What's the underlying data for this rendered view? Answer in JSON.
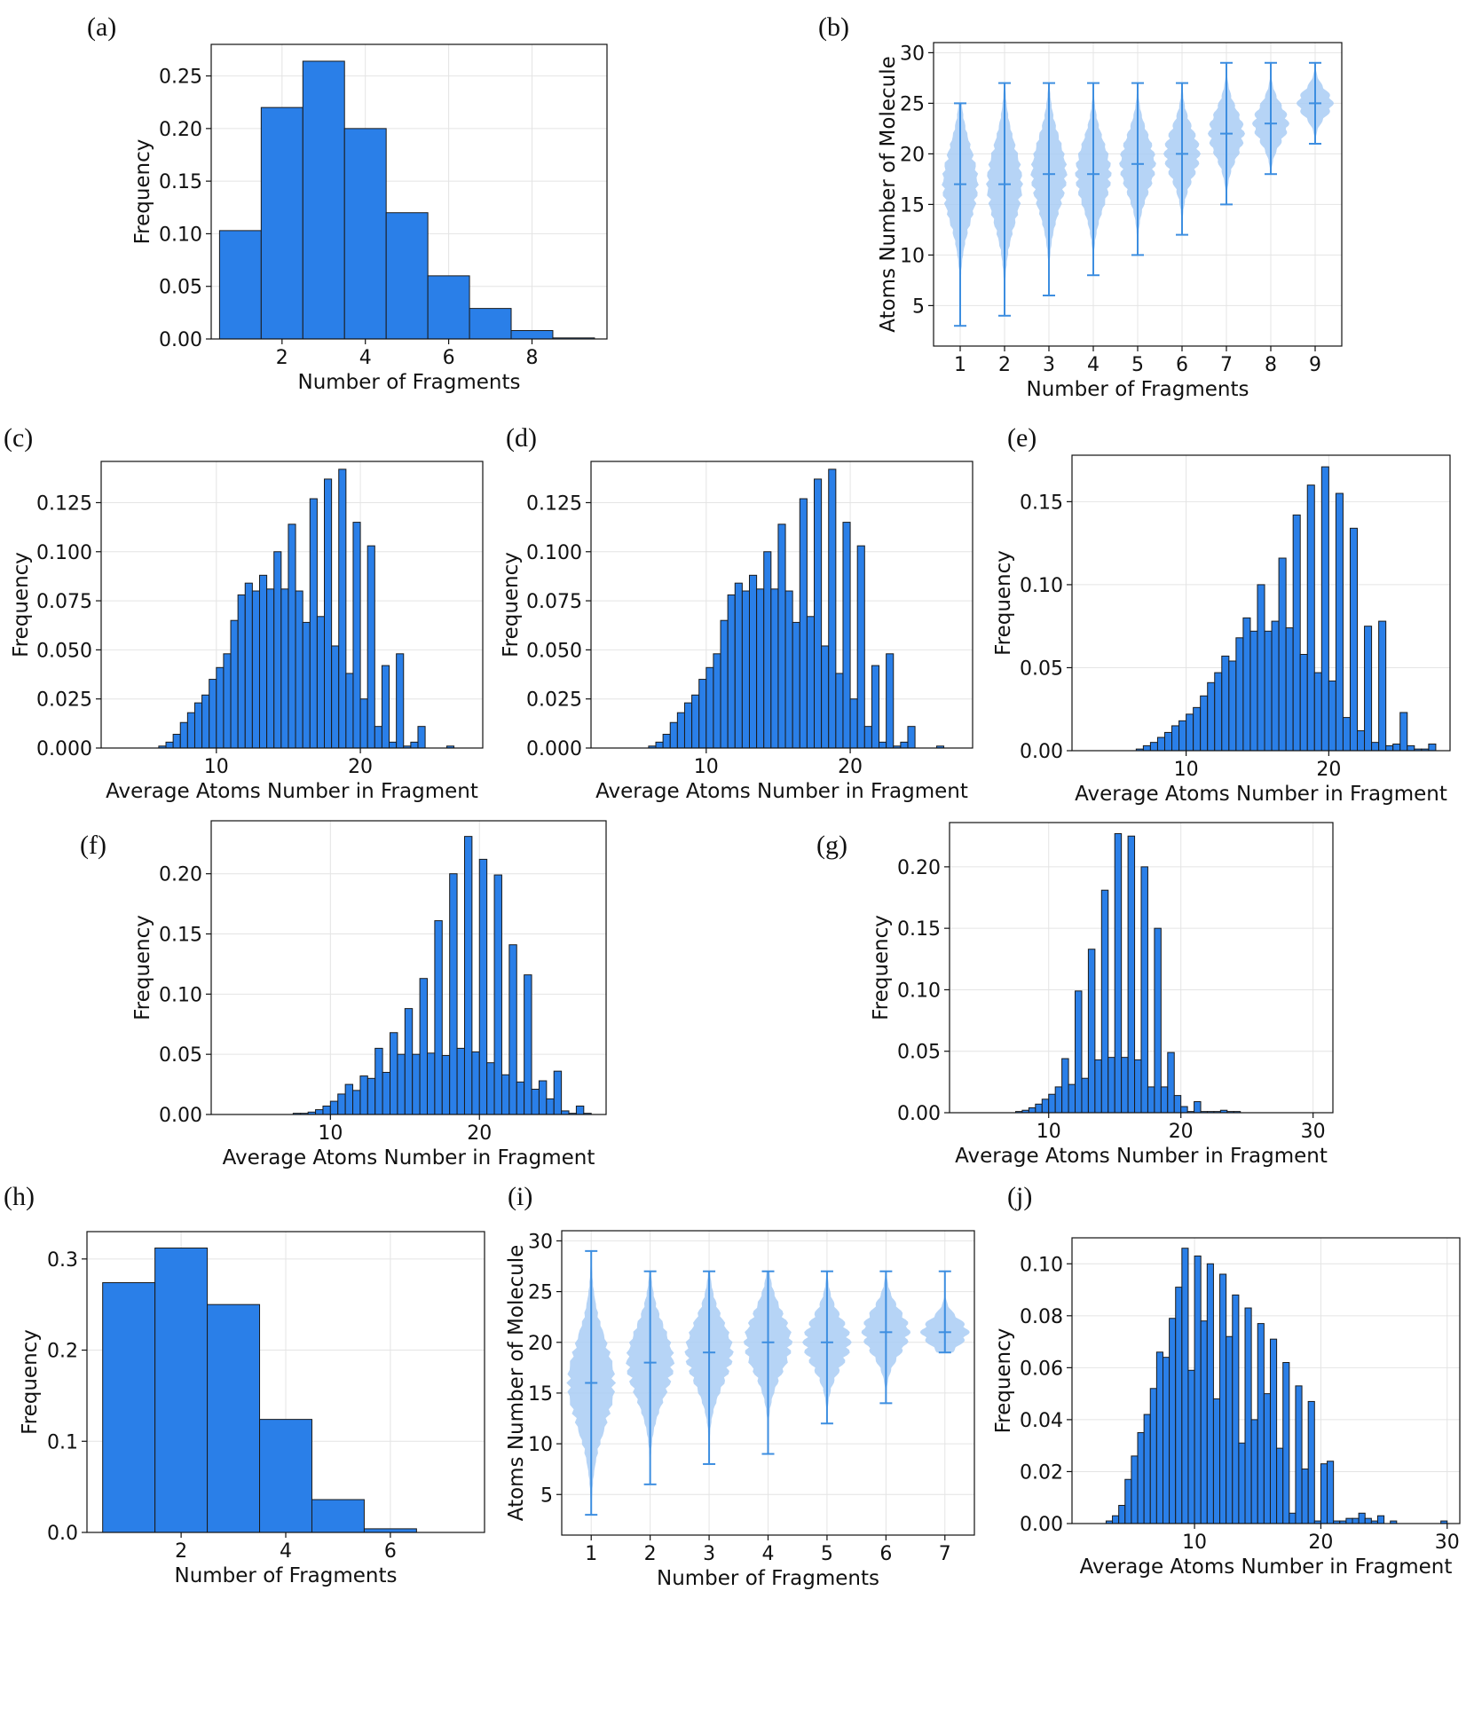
{
  "colors": {
    "bar": "#2a7fe8",
    "edge": "#1b1b1b",
    "violin": "#a9cdf5",
    "line": "#3d8ee0",
    "grid": "#e4e4e4"
  },
  "chart_data": [
    {
      "id": "a",
      "label": "(a)",
      "type": "bar",
      "xlabel": "Number of Fragments",
      "ylabel": "Frequency",
      "xlim": [
        0.3,
        9.8
      ],
      "ylim": [
        0,
        0.28
      ],
      "xticks": [
        2,
        4,
        6,
        8
      ],
      "yticks": [
        0.0,
        0.05,
        0.1,
        0.15,
        0.2,
        0.25
      ],
      "xtick_labels": [
        "2",
        "4",
        "6",
        "8"
      ],
      "ytick_labels": [
        "0.00",
        "0.05",
        "0.10",
        "0.15",
        "0.20",
        "0.25"
      ],
      "bin_start": 0.5,
      "bin_width": 1,
      "values": [
        0.103,
        0.22,
        0.264,
        0.2,
        0.12,
        0.06,
        0.029,
        0.008,
        0.001
      ]
    },
    {
      "id": "b",
      "label": "(b)",
      "type": "violin",
      "xlabel": "Number of Fragments",
      "ylabel": "Atoms Number of Molecule",
      "xlim": [
        0.4,
        9.6
      ],
      "ylim": [
        1,
        31
      ],
      "xticks": [
        1,
        2,
        3,
        4,
        5,
        6,
        7,
        8,
        9
      ],
      "yticks": [
        5,
        10,
        15,
        20,
        25,
        30
      ],
      "xtick_labels": [
        "1",
        "2",
        "3",
        "4",
        "5",
        "6",
        "7",
        "8",
        "9"
      ],
      "ytick_labels": [
        "5",
        "10",
        "15",
        "20",
        "25",
        "30"
      ],
      "violins": [
        {
          "x": 1,
          "min": 3,
          "max": 25,
          "median": 17
        },
        {
          "x": 2,
          "min": 4,
          "max": 27,
          "median": 17
        },
        {
          "x": 3,
          "min": 6,
          "max": 27,
          "median": 18
        },
        {
          "x": 4,
          "min": 8,
          "max": 27,
          "median": 18
        },
        {
          "x": 5,
          "min": 10,
          "max": 27,
          "median": 19
        },
        {
          "x": 6,
          "min": 12,
          "max": 27,
          "median": 20
        },
        {
          "x": 7,
          "min": 15,
          "max": 29,
          "median": 22
        },
        {
          "x": 8,
          "min": 18,
          "max": 29,
          "median": 23
        },
        {
          "x": 9,
          "min": 21,
          "max": 29,
          "median": 25
        }
      ]
    },
    {
      "id": "c",
      "label": "(c)",
      "type": "bar",
      "xlabel": "Average Atoms Number in Fragment",
      "ylabel": "Frequency",
      "xlim": [
        2,
        28.5
      ],
      "ylim": [
        0,
        0.146
      ],
      "xticks": [
        10,
        20
      ],
      "yticks": [
        0.0,
        0.025,
        0.05,
        0.075,
        0.1,
        0.125
      ],
      "xtick_labels": [
        "10",
        "20"
      ],
      "ytick_labels": [
        "0.000",
        "0.025",
        "0.050",
        "0.075",
        "0.100",
        "0.125"
      ],
      "bin_start": 4,
      "bin_width": 0.5,
      "values": [
        0,
        0,
        0,
        0,
        0.001,
        0.003,
        0.007,
        0.013,
        0.018,
        0.023,
        0.027,
        0.035,
        0.041,
        0.048,
        0.065,
        0.078,
        0.084,
        0.08,
        0.088,
        0.081,
        0.1,
        0.081,
        0.114,
        0.08,
        0.064,
        0.127,
        0.067,
        0.137,
        0.052,
        0.142,
        0.038,
        0.115,
        0.025,
        0.103,
        0.011,
        0.042,
        0.003,
        0.048,
        0.001,
        0.003,
        0.011,
        0,
        0,
        0,
        0.001,
        0,
        0,
        0,
        0,
        0
      ]
    },
    {
      "id": "d",
      "label": "(d)",
      "type": "bar",
      "xlabel": "Average Atoms Number in Fragment",
      "ylabel": "Frequency",
      "xlim": [
        2,
        28.5
      ],
      "ylim": [
        0,
        0.146
      ],
      "xticks": [
        10,
        20
      ],
      "yticks": [
        0.0,
        0.025,
        0.05,
        0.075,
        0.1,
        0.125
      ],
      "xtick_labels": [
        "10",
        "20"
      ],
      "ytick_labels": [
        "0.000",
        "0.025",
        "0.050",
        "0.075",
        "0.100",
        "0.125"
      ],
      "bin_start": 4,
      "bin_width": 0.5,
      "values": [
        0,
        0,
        0,
        0,
        0.001,
        0.003,
        0.007,
        0.013,
        0.018,
        0.023,
        0.027,
        0.035,
        0.041,
        0.048,
        0.065,
        0.078,
        0.084,
        0.08,
        0.088,
        0.081,
        0.1,
        0.081,
        0.114,
        0.08,
        0.064,
        0.127,
        0.067,
        0.137,
        0.052,
        0.142,
        0.038,
        0.115,
        0.025,
        0.103,
        0.011,
        0.042,
        0.003,
        0.048,
        0.001,
        0.003,
        0.011,
        0,
        0,
        0,
        0.001,
        0,
        0,
        0,
        0,
        0
      ]
    },
    {
      "id": "e",
      "label": "(e)",
      "type": "bar",
      "xlabel": "Average Atoms Number in Fragment",
      "ylabel": "Frequency",
      "xlim": [
        2,
        28.5
      ],
      "ylim": [
        0,
        0.178
      ],
      "xticks": [
        10,
        20
      ],
      "yticks": [
        0.0,
        0.05,
        0.1,
        0.15
      ],
      "xtick_labels": [
        "10",
        "20"
      ],
      "ytick_labels": [
        "0.00",
        "0.05",
        "0.10",
        "0.15"
      ],
      "bin_start": 4,
      "bin_width": 0.5,
      "values": [
        0,
        0,
        0,
        0,
        0,
        0.001,
        0.003,
        0.005,
        0.008,
        0.011,
        0.015,
        0.018,
        0.022,
        0.026,
        0.033,
        0.041,
        0.047,
        0.057,
        0.054,
        0.068,
        0.08,
        0.072,
        0.1,
        0.072,
        0.078,
        0.116,
        0.074,
        0.142,
        0.058,
        0.16,
        0.047,
        0.171,
        0.042,
        0.155,
        0.02,
        0.134,
        0.012,
        0.075,
        0.005,
        0.078,
        0.003,
        0.004,
        0.023,
        0.003,
        0.001,
        0.001,
        0.004,
        0,
        0,
        0
      ]
    },
    {
      "id": "f",
      "label": "(f)",
      "type": "bar",
      "xlabel": "Average Atoms Number in Fragment",
      "ylabel": "Frequency",
      "xlim": [
        2,
        28.5
      ],
      "ylim": [
        0,
        0.244
      ],
      "xticks": [
        10,
        20
      ],
      "yticks": [
        0.0,
        0.05,
        0.1,
        0.15,
        0.2
      ],
      "xtick_labels": [
        "10",
        "20"
      ],
      "ytick_labels": [
        "0.00",
        "0.05",
        "0.10",
        "0.15",
        "0.20"
      ],
      "bin_start": 4,
      "bin_width": 0.5,
      "values": [
        0,
        0,
        0,
        0,
        0,
        0,
        0,
        0.001,
        0.001,
        0.002,
        0.004,
        0.007,
        0.011,
        0.017,
        0.025,
        0.02,
        0.032,
        0.03,
        0.055,
        0.035,
        0.068,
        0.05,
        0.088,
        0.05,
        0.113,
        0.051,
        0.161,
        0.049,
        0.2,
        0.055,
        0.231,
        0.052,
        0.212,
        0.043,
        0.199,
        0.033,
        0.141,
        0.027,
        0.116,
        0.021,
        0.028,
        0.013,
        0.036,
        0.003,
        0.001,
        0.007,
        0.001,
        0,
        0,
        0
      ]
    },
    {
      "id": "g",
      "label": "(g)",
      "type": "bar",
      "xlabel": "Average Atoms Number in Fragment",
      "ylabel": "Frequency",
      "xlim": [
        2.5,
        31.5
      ],
      "ylim": [
        0,
        0.236
      ],
      "xticks": [
        10,
        20,
        30
      ],
      "yticks": [
        0.0,
        0.05,
        0.1,
        0.15,
        0.2
      ],
      "xtick_labels": [
        "10",
        "20",
        "30"
      ],
      "ytick_labels": [
        "0.00",
        "0.05",
        "0.10",
        "0.15",
        "0.20"
      ],
      "bin_start": 7,
      "bin_width": 0.5,
      "values": [
        0,
        0.001,
        0.002,
        0.004,
        0.007,
        0.011,
        0.015,
        0.021,
        0.044,
        0.023,
        0.099,
        0.028,
        0.133,
        0.043,
        0.181,
        0.045,
        0.227,
        0.045,
        0.225,
        0.043,
        0.2,
        0.021,
        0.15,
        0.021,
        0.049,
        0.014,
        0.005,
        0.001,
        0.009,
        0.001,
        0.001,
        0.001,
        0.002,
        0.001,
        0.001,
        0,
        0,
        0,
        0,
        0,
        0,
        0,
        0,
        0,
        0,
        0
      ]
    },
    {
      "id": "h",
      "label": "(h)",
      "type": "bar",
      "xlabel": "Number of Fragments",
      "ylabel": "Frequency",
      "xlim": [
        0.2,
        7.8
      ],
      "ylim": [
        0,
        0.33
      ],
      "xticks": [
        2,
        4,
        6
      ],
      "yticks": [
        0.0,
        0.1,
        0.2,
        0.3
      ],
      "xtick_labels": [
        "2",
        "4",
        "6"
      ],
      "ytick_labels": [
        "0.0",
        "0.1",
        "0.2",
        "0.3"
      ],
      "bin_start": 0.5,
      "bin_width": 1,
      "values": [
        0.274,
        0.312,
        0.25,
        0.124,
        0.036,
        0.004,
        0
      ]
    },
    {
      "id": "i",
      "label": "(i)",
      "type": "violin",
      "xlabel": "Number of Fragments",
      "ylabel": "Atoms Number of Molecule",
      "xlim": [
        0.5,
        7.5
      ],
      "ylim": [
        1,
        31
      ],
      "xticks": [
        1,
        2,
        3,
        4,
        5,
        6,
        7
      ],
      "yticks": [
        5,
        10,
        15,
        20,
        25,
        30
      ],
      "xtick_labels": [
        "1",
        "2",
        "3",
        "4",
        "5",
        "6",
        "7"
      ],
      "ytick_labels": [
        "5",
        "10",
        "15",
        "20",
        "25",
        "30"
      ],
      "violins": [
        {
          "x": 1,
          "min": 3,
          "max": 29,
          "median": 16
        },
        {
          "x": 2,
          "min": 6,
          "max": 27,
          "median": 18
        },
        {
          "x": 3,
          "min": 8,
          "max": 27,
          "median": 19
        },
        {
          "x": 4,
          "min": 9,
          "max": 27,
          "median": 20
        },
        {
          "x": 5,
          "min": 12,
          "max": 27,
          "median": 20
        },
        {
          "x": 6,
          "min": 14,
          "max": 27,
          "median": 21
        },
        {
          "x": 7,
          "min": 19,
          "max": 27,
          "median": 21
        }
      ]
    },
    {
      "id": "j",
      "label": "(j)",
      "type": "bar",
      "xlabel": "Average Atoms Number in Fragment",
      "ylabel": "Frequency",
      "xlim": [
        0.3,
        31
      ],
      "ylim": [
        0,
        0.11
      ],
      "xticks": [
        10,
        20,
        30
      ],
      "yticks": [
        0.0,
        0.02,
        0.04,
        0.06,
        0.08,
        0.1
      ],
      "xtick_labels": [
        "10",
        "20",
        "30"
      ],
      "ytick_labels": [
        "0.00",
        "0.02",
        "0.04",
        "0.06",
        "0.08",
        "0.10"
      ],
      "bin_start": 2,
      "bin_width": 0.5,
      "values": [
        0,
        0,
        0.001,
        0.003,
        0.007,
        0.017,
        0.026,
        0.035,
        0.042,
        0.052,
        0.066,
        0.064,
        0.079,
        0.091,
        0.106,
        0.059,
        0.103,
        0.078,
        0.1,
        0.048,
        0.096,
        0.072,
        0.088,
        0.031,
        0.083,
        0.04,
        0.077,
        0.05,
        0.071,
        0.029,
        0.062,
        0.004,
        0.053,
        0.021,
        0.047,
        0.001,
        0.023,
        0.024,
        0.001,
        0.001,
        0.002,
        0.002,
        0.004,
        0.002,
        0.001,
        0.003,
        0,
        0.001,
        0,
        0,
        0,
        0,
        0,
        0,
        0,
        0.001,
        0
      ]
    }
  ]
}
